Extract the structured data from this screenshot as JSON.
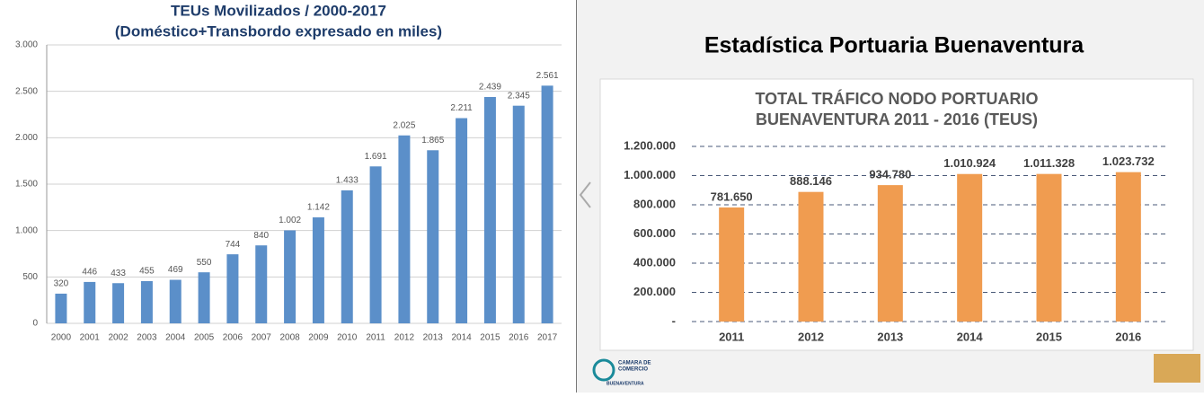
{
  "heading": "Estadística Portuaria Buenaventura",
  "logo": {
    "lines": [
      "CAMARA DE",
      "COMERCIO",
      "BUENAVENTURA"
    ]
  },
  "chart_data": [
    {
      "type": "bar",
      "title": "TEUs Movilizados / 2000-2017",
      "subtitle": "(Doméstico+Transbordo expresado en miles)",
      "categories": [
        "2000",
        "2001",
        "2002",
        "2003",
        "2004",
        "2005",
        "2006",
        "2007",
        "2008",
        "2009",
        "2010",
        "2011",
        "2012",
        "2013",
        "2014",
        "2015",
        "2016",
        "2017"
      ],
      "values": [
        320,
        446,
        433,
        455,
        469,
        550,
        744,
        840,
        1002,
        1142,
        1433,
        1691,
        2025,
        1865,
        2211,
        2439,
        2345,
        2561
      ],
      "value_labels": [
        "320",
        "446",
        "433",
        "455",
        "469",
        "550",
        "744",
        "840",
        "1.002",
        "1.142",
        "1.433",
        "1.691",
        "2.025",
        "1.865",
        "2.211",
        "2.439",
        "2.345",
        "2.561"
      ],
      "color": "#5b8fc9",
      "ylim": [
        0,
        3000
      ],
      "yticks": [
        0,
        500,
        {
          "value": 1000,
          "label": "1.000"
        },
        {
          "value": 1500,
          "label": "1.500"
        },
        {
          "value": 2000,
          "label": "2.000"
        },
        {
          "value": 2500,
          "label": "2.500"
        },
        {
          "value": 3000,
          "label": "3.000"
        }
      ],
      "grid": true
    },
    {
      "type": "bar",
      "title": "TOTAL TRÁFICO NODO PORTUARIO",
      "subtitle": "BUENAVENTURA 2011 - 2016 (TEUS)",
      "categories": [
        "2011",
        "2012",
        "2013",
        "2014",
        "2015",
        "2016"
      ],
      "values": [
        781650,
        888146,
        934780,
        1010924,
        1011328,
        1023732
      ],
      "value_labels": [
        "781.650",
        "888.146",
        "934.780",
        "1.010.924",
        "1.011.328",
        "1.023.732"
      ],
      "color": "#f09c50",
      "ylim": [
        0,
        1200000
      ],
      "yticks": [
        {
          "value": 0,
          "label": "-"
        },
        {
          "value": 200000,
          "label": "200.000"
        },
        {
          "value": 400000,
          "label": "400.000"
        },
        {
          "value": 600000,
          "label": "600.000"
        },
        {
          "value": 800000,
          "label": "800.000"
        },
        {
          "value": 1000000,
          "label": "1.000.000"
        },
        {
          "value": 1200000,
          "label": "1.200.000"
        }
      ],
      "grid": true
    }
  ]
}
